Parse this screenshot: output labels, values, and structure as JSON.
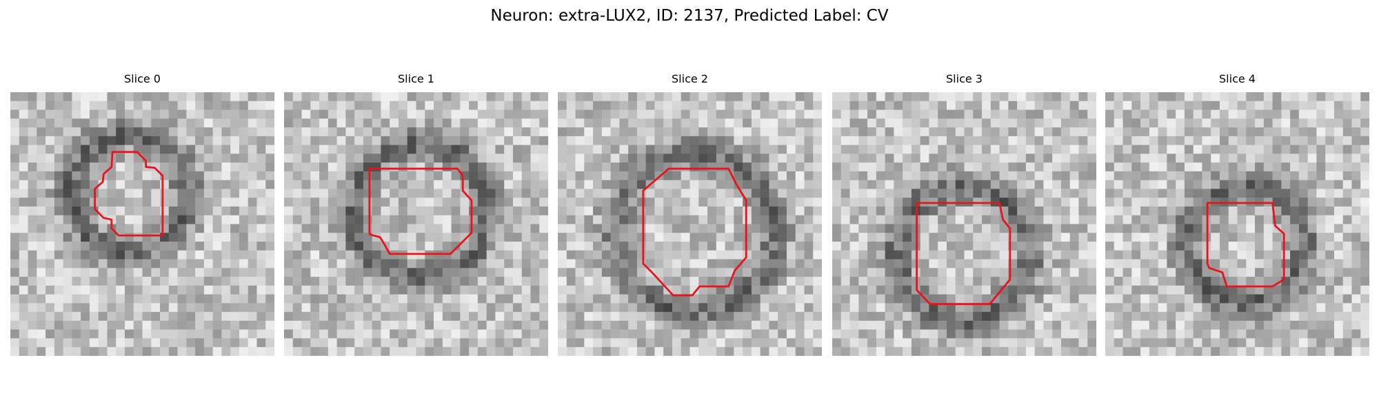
{
  "title": "Neuron: extra-LUX2, ID: 2137, Predicted Label: CV",
  "panels": [
    {
      "title": "Slice 0"
    },
    {
      "title": "Slice 1"
    },
    {
      "title": "Slice 2"
    },
    {
      "title": "Slice 3"
    },
    {
      "title": "Slice 4"
    }
  ]
}
